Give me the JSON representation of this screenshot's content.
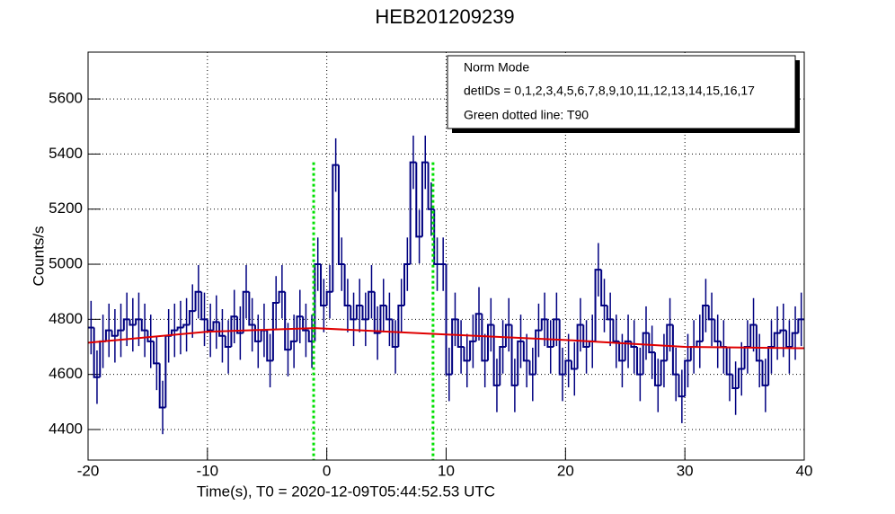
{
  "chart_data": {
    "type": "histogram",
    "title": "HEB201209239",
    "x_label": "Time(s), T0 = 2020-12-09T05:44:52.53 UTC",
    "y_label": "Counts/s",
    "xlim": [
      -20,
      40
    ],
    "ylim": [
      4289,
      5770
    ],
    "xticks": [
      -20,
      -10,
      0,
      10,
      20,
      30,
      40
    ],
    "yticks": [
      4400,
      4600,
      4800,
      5000,
      5200,
      5400,
      5600
    ],
    "grid": true,
    "color": "#000080",
    "bins": [
      -20,
      -19.5,
      -19,
      -18.5,
      -18,
      -17.5,
      -17,
      -16.5,
      -16,
      -15.5,
      -15,
      -14.5,
      -14,
      -13.5,
      -13,
      -12.5,
      -12,
      -11.5,
      -11,
      -10.5,
      -10,
      -9.5,
      -9,
      -8.5,
      -8,
      -7.5,
      -7,
      -6.5,
      -6,
      -5.5,
      -5,
      -4.5,
      -4,
      -3.5,
      -3,
      -2.5,
      -2,
      -1.5,
      -1,
      -0.5,
      0,
      0.5,
      1,
      1.5,
      2,
      2.5,
      3,
      3.5,
      4,
      4.5,
      5,
      5.5,
      6,
      6.5,
      7,
      7.5,
      8,
      8.5,
      9,
      9.5,
      10,
      10.5,
      11,
      11.5,
      12,
      12.5,
      13,
      13.5,
      14,
      14.5,
      15,
      15.5,
      16,
      16.5,
      17,
      17.5,
      18,
      18.5,
      19,
      19.5,
      20,
      20.5,
      21,
      21.5,
      22,
      22.5,
      23,
      23.5,
      24,
      24.5,
      25,
      25.5,
      26,
      26.5,
      27,
      27.5,
      28,
      28.5,
      29,
      29.5,
      30,
      30.5,
      31,
      31.5,
      32,
      32.5,
      33,
      33.5,
      34,
      34.5,
      35,
      35.5,
      36,
      36.5,
      37,
      37.5,
      38,
      38.5,
      39,
      39.5,
      40
    ],
    "values": [
      4770,
      4590,
      4720,
      4760,
      4740,
      4760,
      4800,
      4780,
      4800,
      4760,
      4720,
      4640,
      4480,
      4740,
      4760,
      4770,
      4780,
      4830,
      4900,
      4800,
      4760,
      4790,
      4740,
      4700,
      4810,
      4750,
      4900,
      4780,
      4720,
      4760,
      4650,
      4860,
      4900,
      4690,
      4720,
      4810,
      4760,
      4720,
      5000,
      4850,
      4900,
      5360,
      5000,
      4850,
      4800,
      4850,
      4800,
      4900,
      4750,
      4850,
      4800,
      4700,
      4850,
      5000,
      5370,
      5100,
      5370,
      5200,
      5000,
      5000,
      4600,
      4800,
      4700,
      4650,
      4720,
      4820,
      4650,
      4780,
      4560,
      4700,
      4780,
      4560,
      4720,
      4650,
      4600,
      4760,
      4800,
      4700,
      4800,
      4600,
      4650,
      4620,
      4780,
      4700,
      4720,
      4980,
      4850,
      4800,
      4720,
      4650,
      4720,
      4700,
      4600,
      4750,
      4680,
      4560,
      4650,
      4780,
      4600,
      4520,
      4650,
      4700,
      4720,
      4850,
      4800,
      4720,
      4700,
      4600,
      4550,
      4620,
      4700,
      4780,
      4650,
      4560,
      4700,
      4750,
      4760,
      4700,
      4750,
      4800
    ],
    "errors": [
      97,
      97,
      97,
      97,
      97,
      97,
      97,
      97,
      97,
      97,
      97,
      97,
      97,
      97,
      97,
      97,
      97,
      97,
      97,
      97,
      97,
      97,
      97,
      97,
      97,
      97,
      97,
      97,
      97,
      97,
      97,
      97,
      97,
      97,
      97,
      97,
      97,
      97,
      97,
      97,
      97,
      97,
      97,
      97,
      97,
      97,
      97,
      97,
      97,
      97,
      97,
      97,
      97,
      97,
      97,
      97,
      97,
      97,
      97,
      97,
      97,
      97,
      97,
      97,
      97,
      97,
      97,
      97,
      97,
      97,
      97,
      97,
      97,
      97,
      97,
      97,
      97,
      97,
      97,
      97,
      97,
      97,
      97,
      97,
      97,
      97,
      97,
      97,
      97,
      97,
      97,
      97,
      97,
      97,
      97,
      97,
      97,
      97,
      97,
      97,
      97,
      97,
      97,
      97,
      97,
      97,
      97,
      97,
      97,
      97,
      97,
      97,
      97,
      97,
      97,
      97,
      97,
      97,
      97,
      97
    ],
    "fit": {
      "color": "#e00000",
      "x": [
        -20,
        -10,
        -1,
        10,
        20,
        30,
        40
      ],
      "values": [
        4715,
        4755,
        4768,
        4745,
        4725,
        4700,
        4695
      ]
    },
    "t90": {
      "color": "#00e000",
      "x": [
        -1.1,
        8.9
      ],
      "top": 5370
    },
    "legend": [
      "Norm Mode",
      "detIDs = 0,1,2,3,4,5,6,7,8,9,10,11,12,13,14,15,16,17",
      "Green dotted line: T90"
    ]
  }
}
